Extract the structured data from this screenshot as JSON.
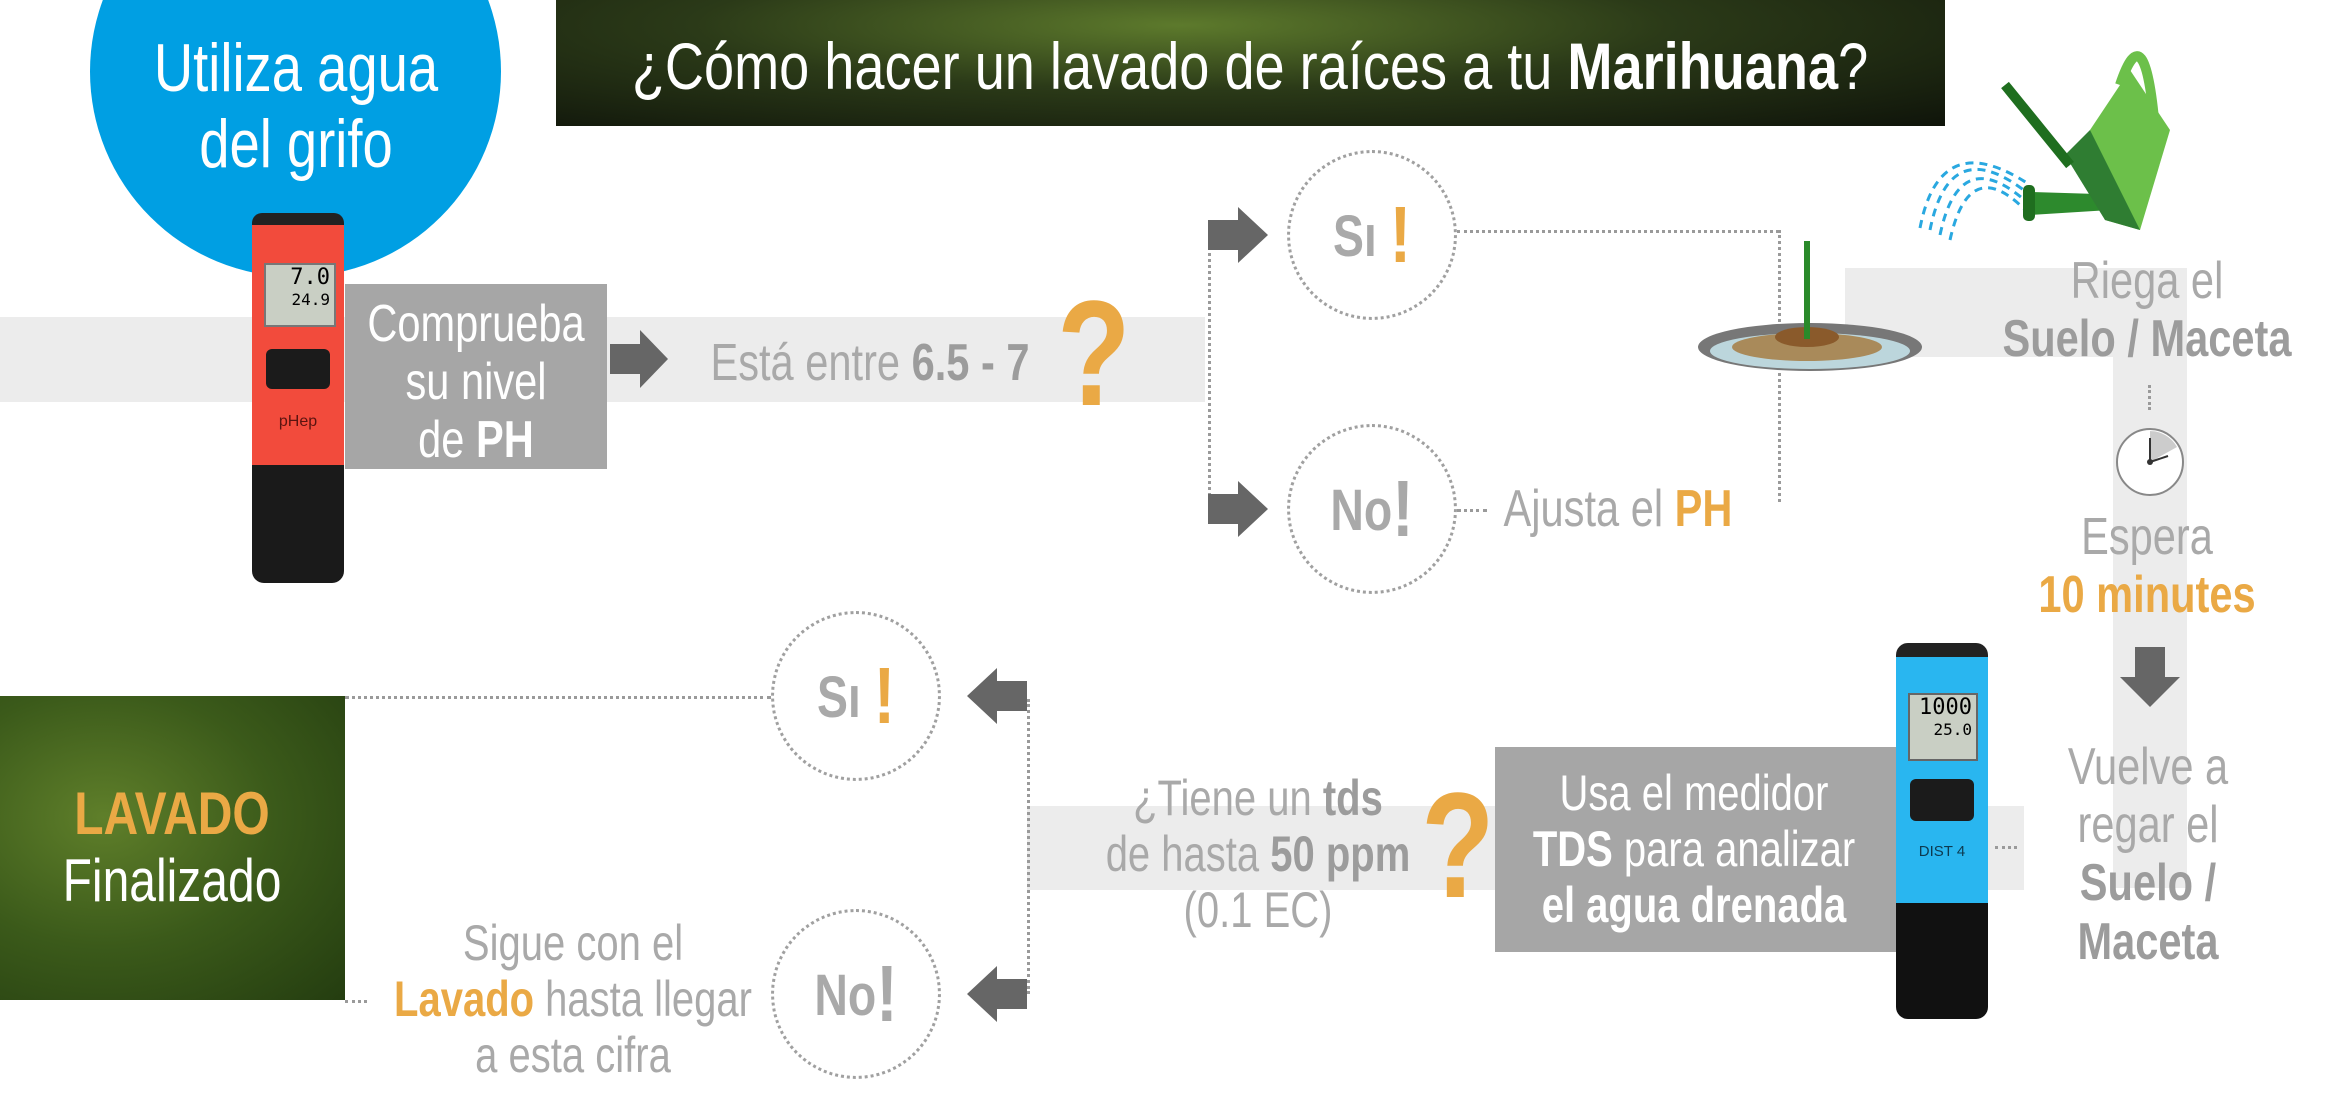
{
  "title": {
    "prefix": "¿Cómo hacer un lavado de raíces a tu ",
    "bold": "Marihuana",
    "suffix": "?"
  },
  "start_bubble": {
    "line1": "Utiliza agua",
    "line2": "del grifo",
    "color": "#009fe3"
  },
  "ph_meter": {
    "reading": "7.0",
    "temp": "24.9",
    "brand": "pHep",
    "color": "#f24b3c"
  },
  "step_check_ph": {
    "line1": "Comprueba",
    "line2": "su nivel",
    "line3_prefix": "de ",
    "line3_bold": "PH"
  },
  "question_ph": {
    "prefix": "Está entre ",
    "bold": "6.5 - 7",
    "mark": "?"
  },
  "branch_ph": {
    "yes": {
      "label": "Sı",
      "mark": "!"
    },
    "no": {
      "label": "No",
      "mark": "!",
      "action_prefix": "Ajusta el ",
      "action_highlight": "PH"
    }
  },
  "step_water": {
    "line1": "Riega el",
    "line2": "Suelo / Maceta"
  },
  "step_wait": {
    "line1": "Espera",
    "line2": "10 minutes"
  },
  "step_rewater": {
    "line1": "Vuelve a",
    "line2": "regar el",
    "line3": "Suelo /",
    "line4": "Maceta"
  },
  "tds_meter": {
    "reading": "1000",
    "temp": "25.0",
    "model": "DIST 4",
    "color": "#29b6f0"
  },
  "step_tds": {
    "line1": "Usa el medidor",
    "line2_bold": "TDS",
    "line2_rest": " para analizar",
    "line3_bold": "el agua drenada"
  },
  "question_tds": {
    "line1_prefix": "¿Tiene un ",
    "line1_bold": "tds",
    "line2_prefix": "de hasta ",
    "line2_bold": "50 ppm",
    "line3": "(0.1 EC)",
    "mark": "?"
  },
  "branch_tds": {
    "yes": {
      "label": "Sı",
      "mark": "!"
    },
    "no": {
      "label": "No",
      "mark": "!",
      "line1": "Sigue con el",
      "line2_highlight": "Lavado",
      "line2_rest": " hasta llegar",
      "line3": "a esta cifra"
    }
  },
  "final": {
    "line1": "LAVADO",
    "line2": "Finalizado"
  },
  "colors": {
    "accent_orange": "#eaa945",
    "box_gray": "#a6a6a6",
    "band_gray": "#ececec",
    "arrow_gray": "#666666",
    "green": "#2f7d32"
  }
}
